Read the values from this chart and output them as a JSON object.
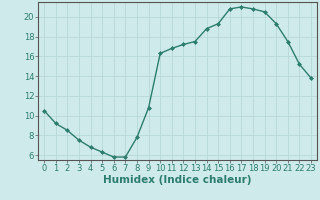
{
  "x": [
    0,
    1,
    2,
    3,
    4,
    5,
    6,
    7,
    8,
    9,
    10,
    11,
    12,
    13,
    14,
    15,
    16,
    17,
    18,
    19,
    20,
    21,
    22,
    23
  ],
  "y": [
    10.5,
    9.2,
    8.5,
    7.5,
    6.8,
    6.3,
    5.8,
    5.8,
    7.8,
    10.8,
    16.3,
    16.8,
    17.2,
    17.5,
    18.8,
    19.3,
    20.8,
    21.0,
    20.8,
    20.5,
    19.3,
    17.5,
    15.2,
    13.8
  ],
  "xlabel": "Humidex (Indice chaleur)",
  "line_color": "#2d7d6e",
  "marker": "D",
  "marker_size": 2,
  "bg_color": "#ceeaea",
  "grid_major_color": "#b8d8d8",
  "grid_minor_color": "#d4ecec",
  "xlim": [
    -0.5,
    23.5
  ],
  "ylim": [
    5.5,
    21.5
  ],
  "yticks": [
    6,
    8,
    10,
    12,
    14,
    16,
    18,
    20
  ],
  "xticks": [
    0,
    1,
    2,
    3,
    4,
    5,
    6,
    7,
    8,
    9,
    10,
    11,
    12,
    13,
    14,
    15,
    16,
    17,
    18,
    19,
    20,
    21,
    22,
    23
  ],
  "xlabel_fontsize": 7.5,
  "tick_fontsize": 6,
  "line_width": 1.0,
  "spine_color": "#555555"
}
